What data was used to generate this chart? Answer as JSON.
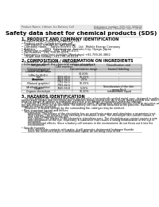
{
  "title": "Safety data sheet for chemical products (SDS)",
  "header_left": "Product Name: Lithium Ion Battery Cell",
  "header_right1": "Substance number: SDS-001-000019",
  "header_right2": "Establishment / Revision: Dec.7.2018",
  "section1_title": "1. PRODUCT AND COMPANY IDENTIFICATION",
  "section1_lines": [
    "• Product name: Lithium Ion Battery Cell",
    "• Product code: Cylindrical-type cell",
    "    (IVF18650U, IVF18650L, IVF18650A)",
    "• Company name:    Sanyo Electric Co., Ltd.  Mobile Energy Company",
    "• Address:         2001  Kamimakura, Sumoto-City, Hyogo, Japan",
    "• Telephone number:   +81-799-26-4111",
    "• Fax number:  +81-799-26-4129",
    "• Emergency telephone number (Weekdays) +81-799-26-3862",
    "    (Night and holiday) +81-799-26-4129"
  ],
  "section2_title": "2. COMPOSITION / INFORMATION ON INGREDIENTS",
  "section2_intro": "• Substance or preparation: Preparation",
  "section2_table_header": "• Information about the chemical nature of product:",
  "table_col1": "Component\n(Chemical name)",
  "table_col2": "CAS number",
  "table_col3": "Concentration /\nConcentration range",
  "table_col4": "Classification and\nhazard labeling",
  "table_col1b": "General Name",
  "table_rows": [
    [
      "Lithium cobalt oxide\n(LiMn-Co-Ni²O⁴)",
      "-",
      "30-60%",
      "-"
    ],
    [
      "Iron",
      "7439-89-6",
      "10-25%",
      "-"
    ],
    [
      "Aluminum",
      "7429-90-5",
      "2-5%",
      "-"
    ],
    [
      "Graphite\n(Natural graphite)\n(Artificial graphite)",
      "7782-42-5\n7782-42-5",
      "10-35%",
      "-"
    ],
    [
      "Copper",
      "7440-50-8",
      "5-15%",
      "Sensitization of the skin\ngroup No.2"
    ],
    [
      "Organic electrolyte",
      "-",
      "10-20%",
      "Inflammable liquid"
    ]
  ],
  "section3_title": "3. HAZARDS IDENTIFICATION",
  "s3_body": [
    "    For this battery cell, chemical materials are stored in a hermetically sealed metal case, designed to withstand",
    "temperature ranges and electrolyte-gas conditions during normal use. As a result, during normal use, there is no",
    "physical danger of ignition or explosion and there is no danger of hazardous materials leakage.",
    "    However, if exposed to a fire, added mechanical shock, decomposed, and/or electric shock or any miss-use,",
    "the gas release vent can be operated. The battery cell case will be breached at fire patterns. Hazardous",
    "materials may be released.",
    "    Moreover, if heated strongly by the surrounding fire, solid gas may be emitted."
  ],
  "s3_hazards": [
    "• Most important hazard and effects:",
    "    Human health effects:",
    "        Inhalation: The release of the electrolyte has an anesthesia action and stimulates a respiratory tract.",
    "        Skin contact: The release of the electrolyte stimulates a skin. The electrolyte skin contact causes a",
    "        sore and stimulation on the skin.",
    "        Eye contact: The release of the electrolyte stimulates eyes. The electrolyte eye contact causes a sore",
    "        and stimulation on the eye. Especially, a substance that causes a strong inflammation of the eye is",
    "        contained.",
    "        Environmental effects: Since a battery cell remains in the environment, do not throw out it into the",
    "        environment.",
    "",
    "• Specific hazards:",
    "        If the electrolyte contacts with water, it will generate detrimental hydrogen fluoride.",
    "        Since the used electrolyte is inflammable liquid, do not bring close to fire."
  ],
  "bg_color": "#ffffff"
}
